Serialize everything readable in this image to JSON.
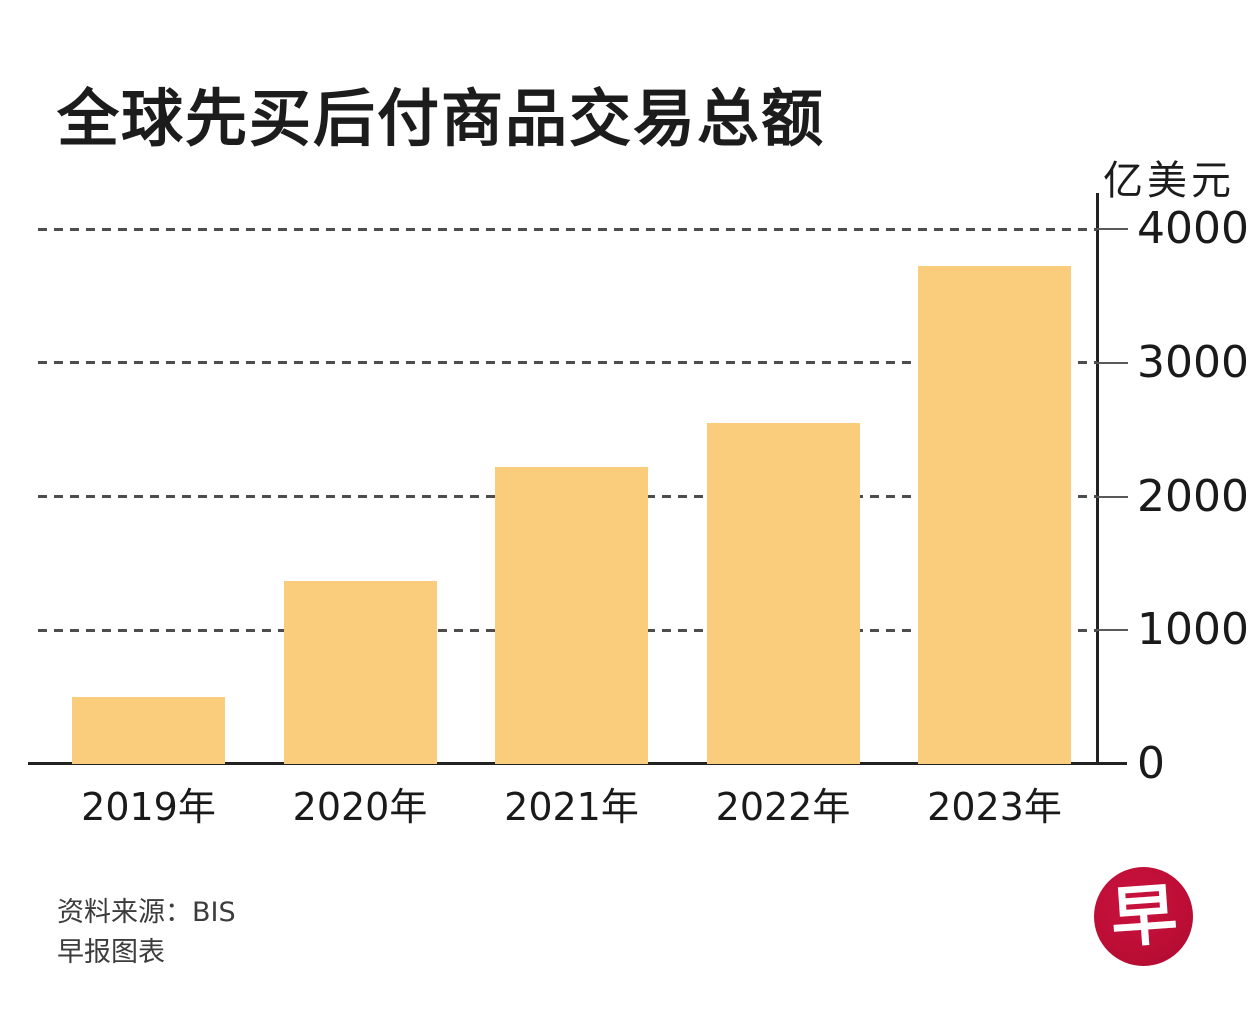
{
  "title": "全球先买后付商品交易总额",
  "chart_data": {
    "type": "bar",
    "title": "全球先买后付商品交易总额",
    "unit_label": "亿美元",
    "categories": [
      "2019年",
      "2020年",
      "2021年",
      "2022年",
      "2023年"
    ],
    "values": [
      500,
      1370,
      2220,
      2550,
      3720
    ],
    "y_ticks": [
      0,
      1000,
      2000,
      3000,
      4000
    ],
    "ylim": [
      0,
      4000
    ],
    "xlabel": "",
    "ylabel": "亿美元",
    "bar_color": "#F9CD7B",
    "grid": true,
    "gridline_style": "dashed",
    "axis_side": "right",
    "legend": "none"
  },
  "source": {
    "line1": "资料来源：BIS",
    "line2": "早报图表"
  },
  "logo": {
    "text": "早",
    "bg_color": "#BD0E36",
    "fg_color": "#FFFFFF"
  }
}
